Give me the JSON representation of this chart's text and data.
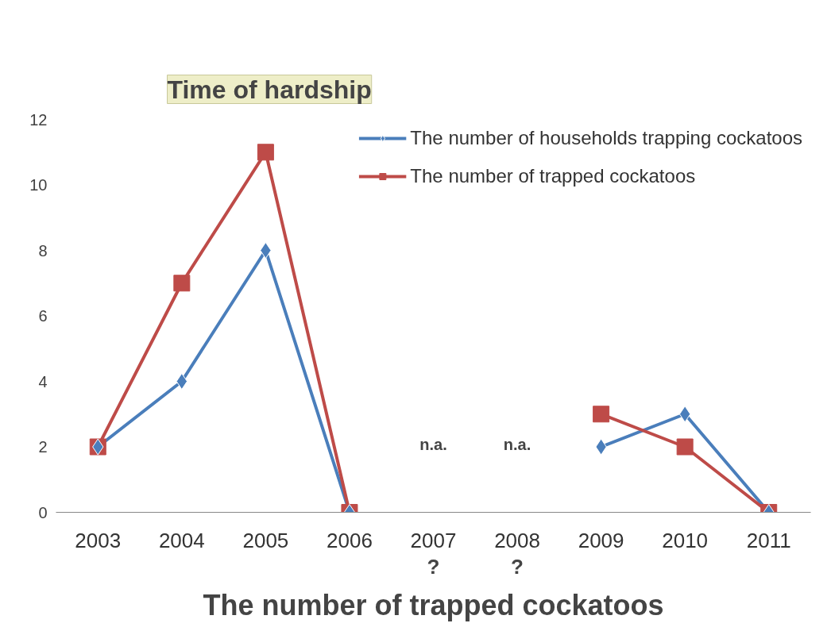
{
  "chart_data": {
    "type": "line",
    "categories": [
      "2003",
      "2004",
      "2005",
      "2006",
      "2007",
      "2008",
      "2009",
      "2010",
      "2011"
    ],
    "series": [
      {
        "name": "The number of households trapping cockatoos",
        "color": "#4a7ebb",
        "marker": "diamond",
        "values": [
          2,
          4,
          8,
          0,
          null,
          null,
          2,
          3,
          0
        ]
      },
      {
        "name": "The number of trapped cockatoos",
        "color": "#be4b48",
        "marker": "square",
        "values": [
          2,
          7,
          11,
          0,
          null,
          null,
          3,
          2,
          0
        ]
      }
    ],
    "ylim": [
      0,
      12
    ],
    "yticks": [
      0,
      2,
      4,
      6,
      8,
      10,
      12
    ],
    "xlabel": "The number of trapped cockatoos",
    "legend": "top right",
    "grid": false,
    "annotations": [
      "Time of hardship",
      "n.a.",
      "n.a.",
      "?",
      "?"
    ]
  }
}
